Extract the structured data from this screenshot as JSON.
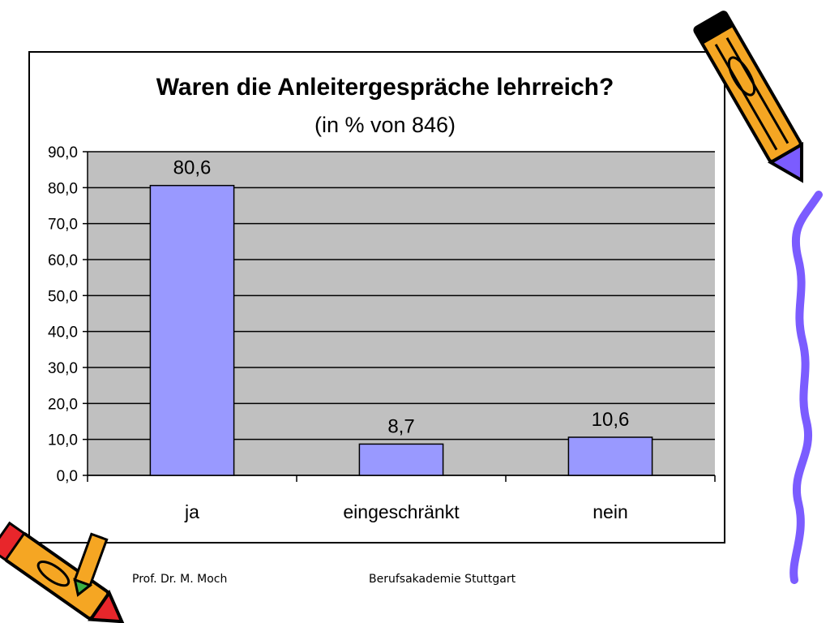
{
  "chart_data": {
    "type": "bar",
    "title": "Waren die Anleitergespräche lehrreich?",
    "subtitle": "(in % von 846)",
    "categories": [
      "ja",
      "eingeschränkt",
      "nein"
    ],
    "values": [
      80.6,
      8.7,
      10.6
    ],
    "data_labels": [
      "80,6",
      "8,7",
      "10,6"
    ],
    "ylim": [
      0,
      90
    ],
    "yticks": [
      "0,0",
      "10,0",
      "20,0",
      "30,0",
      "40,0",
      "50,0",
      "60,0",
      "70,0",
      "80,0",
      "90,0"
    ],
    "grid": true,
    "legend": "none",
    "colors": {
      "bar": "#9999ff",
      "plot_bg": "#c0c0c0",
      "grid": "#000000"
    }
  },
  "footer": {
    "left": "Prof. Dr. M. Moch",
    "right": "Berufsakademie Stuttgart"
  },
  "decorations": {
    "icons": [
      "pencil-icon",
      "pencil-icon",
      "wavy-line-icon"
    ],
    "colors": {
      "pencil_body": "#f5a623",
      "pencil_tip": "#7b5cff",
      "wave": "#7b5cff",
      "pencil_red": "#e8262b"
    }
  }
}
